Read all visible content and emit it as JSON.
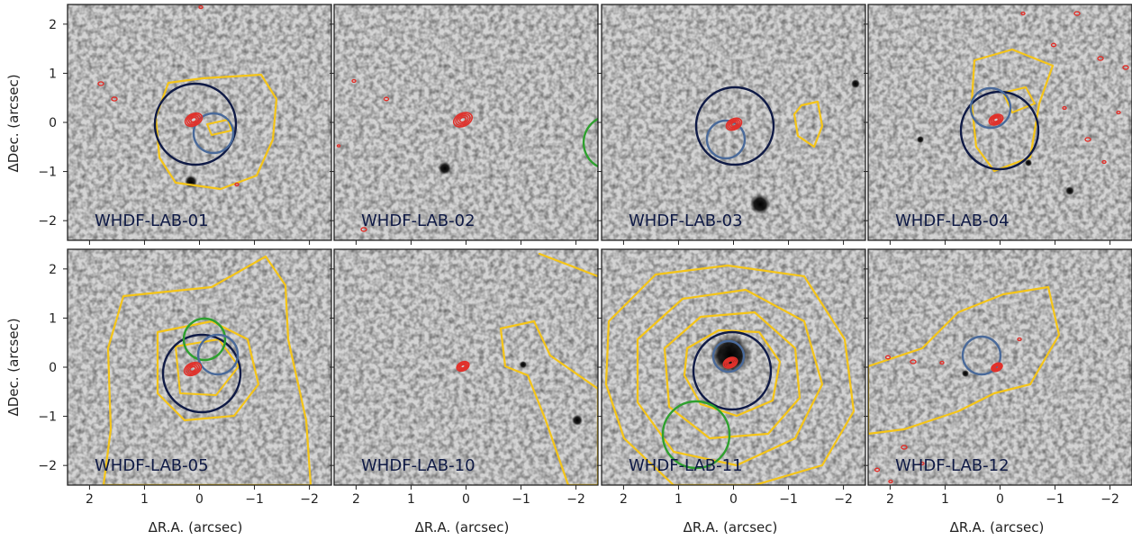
{
  "figure": {
    "x_axis_label": "ΔR.A. (arcsec)",
    "y_axis_label": "ΔDec. (arcsec)",
    "x_ticks": [
      "2",
      "1",
      "0",
      "−1",
      "−2"
    ],
    "y_ticks": [
      "2",
      "1",
      "0",
      "−1",
      "−2"
    ],
    "x_tick_values": [
      2,
      1,
      0,
      -1,
      -2
    ],
    "y_tick_values": [
      2,
      1,
      0,
      -1,
      -2
    ],
    "axis_range": [
      -2.4,
      2.4
    ],
    "colors": {
      "background": "#d4d4d4",
      "yellow_contour": "#f5c518",
      "red_contour": "#e0312b",
      "navy_circle": "#0f1a45",
      "blue_circle": "#4a6a9a",
      "green_circle": "#2ea02e",
      "label": "#0f1a45"
    },
    "panels": [
      {
        "label": "WHDF-LAB-01"
      },
      {
        "label": "WHDF-LAB-02"
      },
      {
        "label": "WHDF-LAB-03"
      },
      {
        "label": "WHDF-LAB-04"
      },
      {
        "label": "WHDF-LAB-05"
      },
      {
        "label": "WHDF-LAB-10"
      },
      {
        "label": "WHDF-LAB-11"
      },
      {
        "label": "WHDF-LAB-12"
      }
    ]
  }
}
